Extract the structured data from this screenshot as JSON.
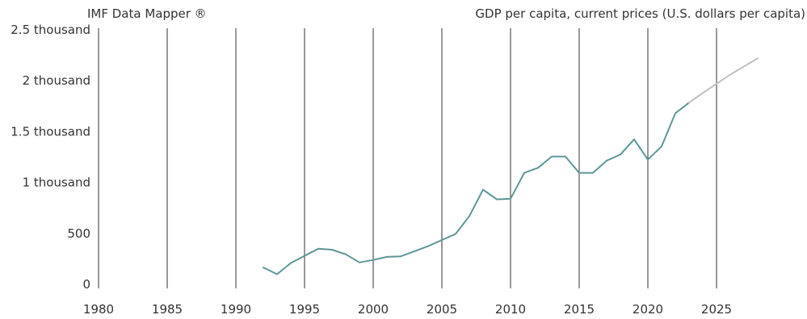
{
  "header": {
    "source": "IMF Data Mapper ®"
  },
  "chart_data": {
    "type": "line",
    "title": "GDP per capita, current prices (U.S. dollars per capita)",
    "xlabel": "",
    "ylabel": "",
    "xlim": [
      1980,
      2028
    ],
    "ylim": [
      0,
      2500
    ],
    "x_ticks": [
      {
        "value": 1980,
        "label": "1980"
      },
      {
        "value": 1985,
        "label": "1985"
      },
      {
        "value": 1990,
        "label": "1990"
      },
      {
        "value": 1995,
        "label": "1995"
      },
      {
        "value": 2000,
        "label": "2000"
      },
      {
        "value": 2005,
        "label": "2005"
      },
      {
        "value": 2010,
        "label": "2010"
      },
      {
        "value": 2015,
        "label": "2015"
      },
      {
        "value": 2020,
        "label": "2020"
      },
      {
        "value": 2025,
        "label": "2025"
      }
    ],
    "y_ticks": [
      {
        "value": 0,
        "label": "0"
      },
      {
        "value": 500,
        "label": "500"
      },
      {
        "value": 1000,
        "label": "1 thousand"
      },
      {
        "value": 1500,
        "label": "1.5 thousand"
      },
      {
        "value": 2000,
        "label": "2 thousand"
      },
      {
        "value": 2500,
        "label": "2.5 thousand"
      }
    ],
    "grid": {
      "vertical": true,
      "horizontal": false
    },
    "colors": {
      "actual": "#5f9696",
      "projection": "#c0c0c0",
      "grid": "#333333"
    },
    "series": [
      {
        "style": "actual",
        "x": [
          1992,
          1993,
          1994,
          1995,
          1996,
          1997,
          1998,
          1999,
          2000,
          2001,
          2002,
          2003,
          2004,
          2005,
          2006,
          2007,
          2008,
          2009,
          2010,
          2011,
          2012,
          2013,
          2014,
          2015,
          2016,
          2017,
          2018,
          2019,
          2020,
          2021,
          2022,
          2023
        ],
        "values": [
          165,
          100,
          210,
          280,
          350,
          340,
          295,
          215,
          240,
          270,
          275,
          325,
          375,
          435,
          495,
          670,
          930,
          835,
          840,
          1095,
          1145,
          1255,
          1255,
          1095,
          1095,
          1215,
          1275,
          1425,
          1225,
          1355,
          1680,
          1785
        ]
      },
      {
        "style": "projection",
        "x": [
          2023,
          2024,
          2025,
          2026,
          2027,
          2028
        ],
        "values": [
          1785,
          1880,
          1970,
          2060,
          2140,
          2220
        ]
      }
    ]
  }
}
